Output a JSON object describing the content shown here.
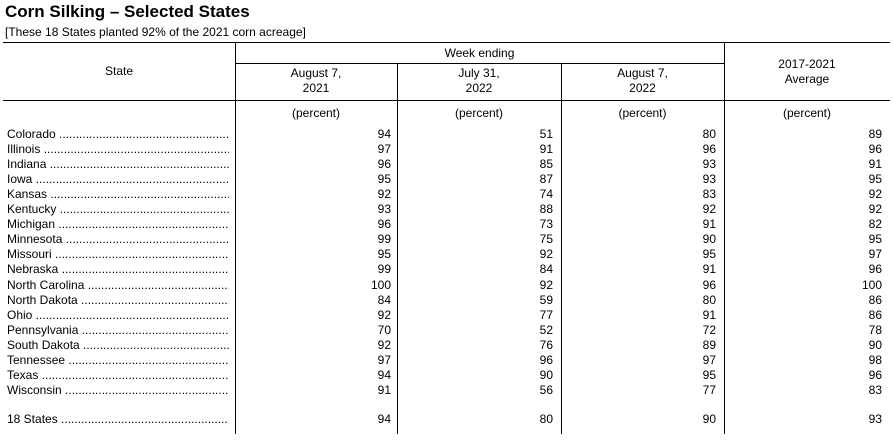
{
  "title": "Corn Silking – Selected States",
  "subtitle": "[These 18 States planted 92% of the 2021 corn acreage]",
  "header": {
    "state": "State",
    "week_ending": "Week ending",
    "col1": [
      "August 7,",
      "2021"
    ],
    "col2": [
      "July 31,",
      "2022"
    ],
    "col3": [
      "August 7,",
      "2022"
    ],
    "col4": [
      "2017-2021",
      "Average"
    ],
    "unit": "(percent)"
  },
  "rows": [
    {
      "state": "Colorado",
      "v": [
        "94",
        "51",
        "80",
        "89"
      ]
    },
    {
      "state": "Illinois",
      "v": [
        "97",
        "91",
        "96",
        "96"
      ]
    },
    {
      "state": "Indiana",
      "v": [
        "96",
        "85",
        "93",
        "91"
      ]
    },
    {
      "state": "Iowa",
      "v": [
        "95",
        "87",
        "93",
        "95"
      ]
    },
    {
      "state": "Kansas",
      "v": [
        "92",
        "74",
        "83",
        "92"
      ]
    },
    {
      "state": "Kentucky",
      "v": [
        "93",
        "88",
        "92",
        "92"
      ]
    },
    {
      "state": "Michigan",
      "v": [
        "96",
        "73",
        "91",
        "82"
      ]
    },
    {
      "state": "Minnesota",
      "v": [
        "99",
        "75",
        "90",
        "95"
      ]
    },
    {
      "state": "Missouri",
      "v": [
        "95",
        "92",
        "95",
        "97"
      ]
    },
    {
      "state": "Nebraska",
      "v": [
        "99",
        "84",
        "91",
        "96"
      ]
    },
    {
      "state": "North Carolina",
      "v": [
        "100",
        "92",
        "96",
        "100"
      ]
    },
    {
      "state": "North Dakota",
      "v": [
        "84",
        "59",
        "80",
        "86"
      ]
    },
    {
      "state": "Ohio",
      "v": [
        "92",
        "77",
        "91",
        "86"
      ]
    },
    {
      "state": "Pennsylvania",
      "v": [
        "70",
        "52",
        "72",
        "78"
      ]
    },
    {
      "state": "South Dakota",
      "v": [
        "92",
        "76",
        "89",
        "90"
      ]
    },
    {
      "state": "Tennessee",
      "v": [
        "97",
        "96",
        "97",
        "98"
      ]
    },
    {
      "state": "Texas",
      "v": [
        "94",
        "90",
        "95",
        "96"
      ]
    },
    {
      "state": "Wisconsin",
      "v": [
        "91",
        "56",
        "77",
        "83"
      ]
    }
  ],
  "total": {
    "state": "18 States",
    "v": [
      "94",
      "80",
      "90",
      "93"
    ]
  }
}
